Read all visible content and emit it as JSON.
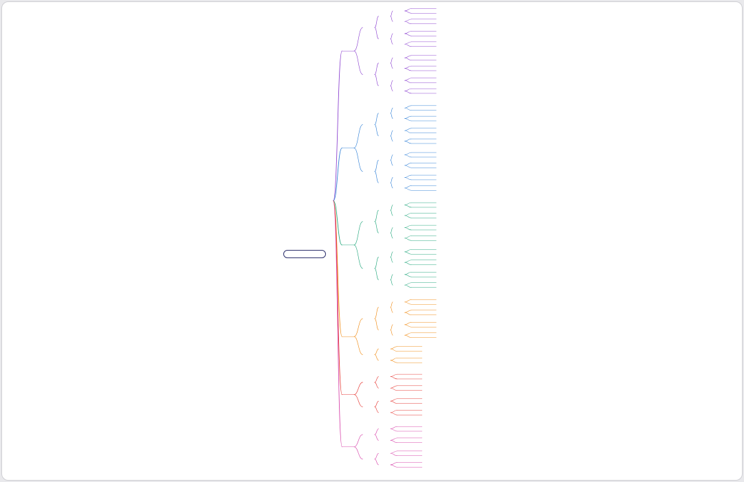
{
  "root": {
    "label": "",
    "color": "#2b2f6b"
  },
  "branches": [
    {
      "label": "",
      "color": "#8a3fcf",
      "children": [
        {
          "label": "",
          "children": [
            {
              "label": "",
              "children": [
                {
                  "label": "",
                  "leaves": [
                    "",
                    ""
                  ]
                },
                {
                  "label": "",
                  "leaves": [
                    "",
                    ""
                  ]
                }
              ]
            },
            {
              "label": "",
              "children": [
                {
                  "label": "",
                  "leaves": [
                    "",
                    ""
                  ]
                },
                {
                  "label": "",
                  "leaves": [
                    "",
                    ""
                  ]
                }
              ]
            }
          ]
        },
        {
          "label": "",
          "children": [
            {
              "label": "",
              "children": [
                {
                  "label": "",
                  "leaves": [
                    "",
                    ""
                  ]
                },
                {
                  "label": "",
                  "leaves": [
                    "",
                    ""
                  ]
                }
              ]
            },
            {
              "label": "",
              "children": [
                {
                  "label": "",
                  "leaves": [
                    "",
                    ""
                  ]
                },
                {
                  "label": "",
                  "leaves": [
                    "",
                    ""
                  ]
                }
              ]
            }
          ]
        }
      ]
    },
    {
      "label": "",
      "color": "#2f7fd6",
      "children": [
        {
          "label": "",
          "children": [
            {
              "label": "",
              "children": [
                {
                  "label": "",
                  "leaves": [
                    "",
                    ""
                  ]
                },
                {
                  "label": "",
                  "leaves": [
                    "",
                    ""
                  ]
                }
              ]
            },
            {
              "label": "",
              "children": [
                {
                  "label": "",
                  "leaves": [
                    "",
                    ""
                  ]
                },
                {
                  "label": "",
                  "leaves": [
                    "",
                    ""
                  ]
                }
              ]
            }
          ]
        },
        {
          "label": "",
          "children": [
            {
              "label": "",
              "children": [
                {
                  "label": "",
                  "leaves": [
                    "",
                    ""
                  ]
                },
                {
                  "label": "",
                  "leaves": [
                    "",
                    ""
                  ]
                }
              ]
            },
            {
              "label": "",
              "children": [
                {
                  "label": "",
                  "leaves": [
                    "",
                    ""
                  ]
                },
                {
                  "label": "",
                  "leaves": [
                    "",
                    ""
                  ]
                }
              ]
            }
          ]
        }
      ]
    },
    {
      "label": "",
      "color": "#1fa57a",
      "children": [
        {
          "label": "",
          "children": [
            {
              "label": "",
              "children": [
                {
                  "label": "",
                  "leaves": [
                    "",
                    ""
                  ]
                },
                {
                  "label": "",
                  "leaves": [
                    "",
                    ""
                  ]
                }
              ]
            },
            {
              "label": "",
              "children": [
                {
                  "label": "",
                  "leaves": [
                    "",
                    ""
                  ]
                },
                {
                  "label": "",
                  "leaves": [
                    "",
                    ""
                  ]
                }
              ]
            }
          ]
        },
        {
          "label": "",
          "children": [
            {
              "label": "",
              "children": [
                {
                  "label": "",
                  "leaves": [
                    "",
                    ""
                  ]
                },
                {
                  "label": "",
                  "leaves": [
                    "",
                    ""
                  ]
                }
              ]
            },
            {
              "label": "",
              "children": [
                {
                  "label": "",
                  "leaves": [
                    "",
                    ""
                  ]
                },
                {
                  "label": "",
                  "leaves": [
                    "",
                    ""
                  ]
                }
              ]
            }
          ]
        }
      ]
    },
    {
      "label": "",
      "color": "#f08a12",
      "children": [
        {
          "label": "",
          "children": [
            {
              "label": "",
              "children": [
                {
                  "label": "",
                  "leaves": [
                    "",
                    ""
                  ]
                },
                {
                  "label": "",
                  "leaves": [
                    "",
                    ""
                  ]
                }
              ]
            },
            {
              "label": "",
              "children": [
                {
                  "label": "",
                  "leaves": [
                    "",
                    ""
                  ]
                },
                {
                  "label": "",
                  "leaves": [
                    "",
                    ""
                  ]
                }
              ]
            }
          ]
        },
        {
          "label": "",
          "children": [
            {
              "label": "",
              "leaves": [
                "",
                ""
              ]
            },
            {
              "label": "",
              "leaves": [
                "",
                ""
              ]
            }
          ]
        }
      ]
    },
    {
      "label": "",
      "color": "#e5322d",
      "children": [
        {
          "label": "",
          "children": [
            {
              "label": "",
              "leaves": [
                "",
                ""
              ]
            },
            {
              "label": "",
              "leaves": [
                "",
                ""
              ]
            }
          ]
        },
        {
          "label": "",
          "children": [
            {
              "label": "",
              "leaves": [
                "",
                ""
              ]
            },
            {
              "label": "",
              "leaves": [
                "",
                ""
              ]
            }
          ]
        }
      ]
    },
    {
      "label": "",
      "color": "#d63fa8",
      "children": [
        {
          "label": "",
          "children": [
            {
              "label": "",
              "leaves": [
                "",
                ""
              ]
            },
            {
              "label": "",
              "leaves": [
                "",
                ""
              ]
            }
          ]
        },
        {
          "label": "",
          "children": [
            {
              "label": "",
              "leaves": [
                "",
                ""
              ]
            },
            {
              "label": "",
              "leaves": [
                "",
                ""
              ]
            }
          ]
        }
      ]
    }
  ]
}
